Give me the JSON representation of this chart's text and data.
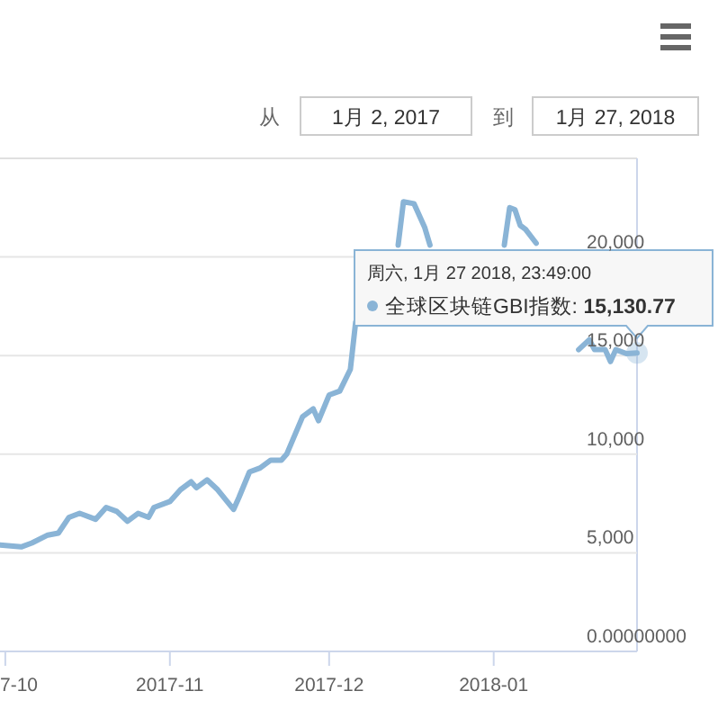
{
  "chart_data": {
    "type": "line",
    "x": [
      "2017-09-30",
      "2017-10-04",
      "2017-10-06",
      "2017-10-09",
      "2017-10-11",
      "2017-10-13",
      "2017-10-15",
      "2017-10-18",
      "2017-10-20",
      "2017-10-22",
      "2017-10-24",
      "2017-10-26",
      "2017-10-28",
      "2017-10-29",
      "2017-11-01",
      "2017-11-03",
      "2017-11-05",
      "2017-11-06",
      "2017-11-08",
      "2017-11-10",
      "2017-11-13",
      "2017-11-14",
      "2017-11-16",
      "2017-11-18",
      "2017-11-20",
      "2017-11-22",
      "2017-11-23",
      "2017-11-26",
      "2017-11-28",
      "2017-11-29",
      "2017-12-01",
      "2017-12-03",
      "2017-12-05",
      "2017-12-06",
      "2017-12-14",
      "2017-12-15",
      "2017-12-17",
      "2017-12-19",
      "2017-12-20",
      "2018-01-03",
      "2018-01-04",
      "2018-01-05",
      "2018-01-06",
      "2018-01-07",
      "2018-01-09",
      "2018-01-17",
      "2018-01-19",
      "2018-01-20",
      "2018-01-22",
      "2018-01-23",
      "2018-01-24",
      "2018-01-26",
      "2018-01-27T23:49"
    ],
    "series": [
      {
        "name": "全球区块链GBI指数:",
        "color": "#8ab4d6",
        "values": [
          5400,
          5300,
          5500,
          5900,
          6000,
          6800,
          7000,
          6700,
          7300,
          7100,
          6600,
          7000,
          6800,
          7300,
          7600,
          8200,
          8600,
          8300,
          8700,
          8200,
          7200,
          7800,
          9100,
          9300,
          9700,
          9700,
          10000,
          11900,
          12300,
          11700,
          13000,
          13200,
          14300,
          16700,
          20600,
          22800,
          22700,
          21500,
          20600,
          20600,
          22500,
          22400,
          21600,
          21400,
          20700,
          15300,
          15800,
          15300,
          15300,
          14700,
          15300,
          15100,
          15130.77
        ],
        "value_labels": [
          null,
          null,
          null,
          null,
          null,
          null,
          null,
          null,
          null,
          null,
          null,
          null,
          null,
          null,
          null,
          null,
          null,
          null,
          null,
          null,
          null,
          null,
          null,
          null,
          null,
          null,
          null,
          null,
          null,
          null,
          null,
          null,
          null,
          null,
          null,
          null,
          null,
          null,
          null,
          null,
          null,
          null,
          null,
          null,
          null,
          null,
          null,
          null,
          null,
          null,
          null,
          null,
          "15,130.77"
        ]
      }
    ],
    "xlim": [
      "2017-09-30",
      "2018-01-28"
    ],
    "xticks": [
      {
        "value": "2017-10-01",
        "label": "7-10"
      },
      {
        "value": "2017-11-01",
        "label": "2017-11"
      },
      {
        "value": "2017-12-01",
        "label": "2017-12"
      },
      {
        "value": "2018-01-01",
        "label": "2018-01"
      }
    ],
    "ylim": [
      0,
      25000
    ],
    "yticks": [
      {
        "value": 0,
        "label": "0.00000000"
      },
      {
        "value": 5000,
        "label": "5,000"
      },
      {
        "value": 10000,
        "label": "10,000"
      },
      {
        "value": 15000,
        "label": "15,000"
      },
      {
        "value": 20000,
        "label": "20,000"
      }
    ],
    "grid": "y",
    "legend": "top right",
    "marker": "none",
    "line_style": "solid",
    "annotations": [
      "从",
      "1月 2, 2017",
      "到",
      "1月 27, 2018",
      "周六, 1月 27 2018, 23:49:00"
    ]
  }
}
